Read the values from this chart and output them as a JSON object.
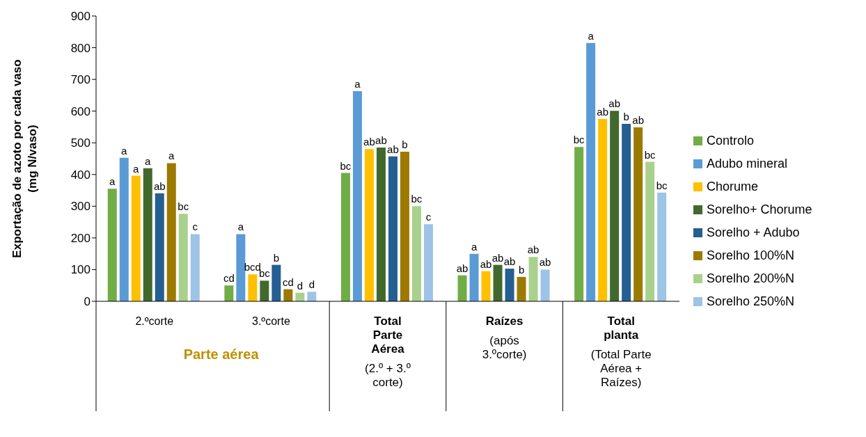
{
  "chart_data": {
    "type": "bar",
    "ylabel": "Exportação de azoto por cada vaso (mg N/vaso)",
    "categories": [
      "2.ºcorte",
      "3.ºcorte",
      "Total Parte Aérea (2.º + 3.º corte)",
      "Raízes (após 3.ºcorte)",
      "Total planta (Total Parte Aérea + Raízes)"
    ],
    "series": [
      {
        "name": "Controlo",
        "color": "#70ad47",
        "values": [
          355,
          50,
          405,
          82,
          487
        ],
        "value_labels": [
          "a",
          "cd",
          "bc",
          "ab",
          "bc"
        ]
      },
      {
        "name": "Adubo mineral",
        "color": "#5b9bd5",
        "values": [
          453,
          212,
          663,
          150,
          815
        ],
        "value_labels": [
          "a",
          "a",
          "a",
          "a",
          "a"
        ]
      },
      {
        "name": "Chorume",
        "color": "#ffc000",
        "values": [
          396,
          85,
          480,
          95,
          575
        ],
        "value_labels": [
          "a",
          "bcd",
          "ab",
          "ab",
          "ab"
        ]
      },
      {
        "name": "Sorelho+ Chorume",
        "color": "#41692d",
        "values": [
          420,
          65,
          485,
          115,
          601
        ],
        "value_labels": [
          "a",
          "bc",
          "ab",
          "ab",
          "ab"
        ]
      },
      {
        "name": "Sorelho + Adubo",
        "color": "#255e91",
        "values": [
          341,
          115,
          457,
          103,
          560
        ],
        "value_labels": [
          "ab",
          "b",
          "ab",
          "ab",
          "b"
        ]
      },
      {
        "name": "Sorelho 100%N",
        "color": "#9c7a00",
        "values": [
          436,
          38,
          472,
          77,
          549
        ],
        "value_labels": [
          "a",
          "cd",
          "b",
          "b",
          "ab"
        ]
      },
      {
        "name": "Sorelho 200%N",
        "color": "#a9d18e",
        "values": [
          276,
          27,
          300,
          140,
          440
        ],
        "value_labels": [
          "bc",
          "d",
          "bc",
          "ab",
          "bc"
        ]
      },
      {
        "name": "Sorelho 250%N",
        "color": "#9dc3e6",
        "values": [
          212,
          30,
          243,
          100,
          343
        ],
        "value_labels": [
          "c",
          "d",
          "c",
          "ab",
          "bc"
        ]
      }
    ],
    "ylim": [
      0,
      900
    ],
    "yticks": [
      0,
      100,
      200,
      300,
      400,
      500,
      600,
      700,
      800,
      900
    ],
    "legend": "right",
    "annotations": [
      "Parte aérea"
    ]
  }
}
